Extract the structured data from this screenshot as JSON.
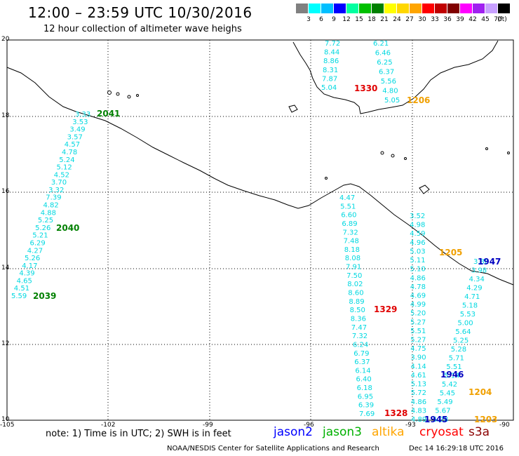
{
  "title": "12:00 – 23:59 UTC 10/30/2016",
  "subtitle": "12 hour collection of altimeter wave heighs",
  "scale": {
    "unit": "(ft)",
    "labels": [
      "3",
      "6",
      "9",
      "12",
      "15",
      "18",
      "21",
      "24",
      "27",
      "30",
      "33",
      "36",
      "39",
      "42",
      "45",
      "70"
    ],
    "colors": [
      "#808080",
      "#00ffff",
      "#00bfff",
      "#0000ff",
      "#00ffa0",
      "#00c000",
      "#008000",
      "#ffff00",
      "#ffd700",
      "#ffa500",
      "#ff0000",
      "#c00000",
      "#800000",
      "#ff00ff",
      "#a020f0",
      "#c8a0ff",
      "#000000"
    ]
  },
  "axes": {
    "lat_labels": [
      "20",
      "18",
      "16",
      "14",
      "12",
      "10"
    ],
    "lon_labels": [
      "-105",
      "-102",
      "-99",
      "-96",
      "-93",
      "-90"
    ]
  },
  "tracks": [
    {
      "values": [
        "3.33",
        "3.53",
        "3.49",
        "3.57",
        "4.57",
        "4.78",
        "5.24",
        "5.12",
        "4.52",
        "3.70",
        "3.32",
        "7.39",
        "4.82",
        "4.88",
        "5.25",
        "5.26",
        "5.21",
        "6.29",
        "4.27",
        "5.26",
        "4.17",
        "4.39",
        "4.65",
        "4.51",
        "5.59"
      ]
    },
    {
      "values": [
        "7.72",
        "8.44",
        "8.86",
        "8.31",
        "7.87",
        "5.04"
      ]
    },
    {
      "values": [
        "6.21",
        "6.46",
        "6.25",
        "6.37",
        "5.56",
        "4.80",
        "5.05"
      ]
    },
    {
      "values": [
        "4.47",
        "5.51",
        "6.60",
        "6.89",
        "7.32",
        "7.48",
        "8.18",
        "8.08",
        "7.91",
        "7.50",
        "8.02",
        "8.60",
        "8.89",
        "8.50",
        "8.36",
        "7.47",
        "7.32",
        "6.24",
        "6.79",
        "6.37",
        "6.14",
        "6.40",
        "6.18",
        "6.95",
        "6.39",
        "7.69"
      ]
    },
    {
      "values": [
        "3.52",
        "4.98",
        "4.59",
        "4.96",
        "5.03",
        "5.11",
        "5.10",
        "4.86",
        "4.78",
        "4.69",
        "4.99",
        "5.20",
        "5.27",
        "5.51",
        "5.27",
        "4.75",
        "3.90",
        "4.14",
        "4.61",
        "5.13",
        "5.72",
        "4.86",
        "4.83",
        "4.89"
      ]
    },
    {
      "values": [
        "3.80",
        "3.98",
        "4.34",
        "4.29",
        "4.71",
        "5.18",
        "5.53",
        "5.00",
        "5.64",
        "5.25",
        "5.28",
        "5.71",
        "5.51",
        "5.14",
        "5.42",
        "5.45",
        "5.49",
        "5.67",
        "5.28"
      ]
    }
  ],
  "pass_labels": [
    {
      "text": "2041",
      "color": "#008000"
    },
    {
      "text": "2040",
      "color": "#008000"
    },
    {
      "text": "2039",
      "color": "#008000"
    },
    {
      "text": "1330",
      "color": "#e00000"
    },
    {
      "text": "1206",
      "color": "#f0a000"
    },
    {
      "text": "1329",
      "color": "#e00000"
    },
    {
      "text": "1328",
      "color": "#e00000"
    },
    {
      "text": "1205",
      "color": "#f0a000"
    },
    {
      "text": "1947",
      "color": "#0000c0"
    },
    {
      "text": "1946",
      "color": "#0000c0"
    },
    {
      "text": "1204",
      "color": "#f0a000"
    },
    {
      "text": "1945",
      "color": "#0000c0"
    },
    {
      "text": "1203",
      "color": "#f0a000"
    }
  ],
  "note": "note: 1) Time is in UTC; 2) SWH is in feet",
  "legend": [
    {
      "label": "jason2",
      "color": "#0000ff"
    },
    {
      "label": "jason3",
      "color": "#00b000"
    },
    {
      "label": "altika",
      "color": "#ffa500"
    },
    {
      "label": "cryosat",
      "color": "#ff0000"
    },
    {
      "label": "s3a",
      "color": "#8b0000"
    }
  ],
  "credit": "NOAA/NESDIS Center for Satellite Applications and Research",
  "generated": "Dec 14 16:29:18 UTC 2016"
}
